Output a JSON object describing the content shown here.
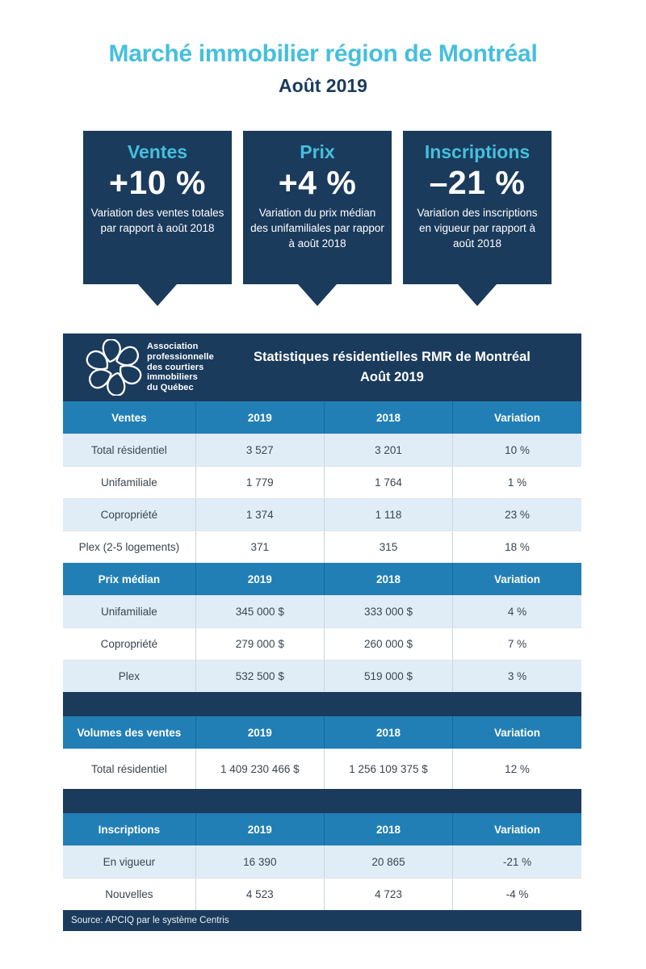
{
  "page": {
    "title": "Marché immobilier région de Montréal",
    "subtitle": "Août 2019"
  },
  "colors": {
    "navy": "#1A3B5C",
    "cyan": "#45BFDD",
    "section_header_blue": "#217FB5",
    "light_row_blue": "#E0EDF7",
    "cell_text": "#3A4550"
  },
  "callouts": [
    {
      "label": "Ventes",
      "value": "+10 %",
      "description": "Variation des ventes totales par rapport à août 2018"
    },
    {
      "label": "Prix",
      "value": "+4 %",
      "description": "Variation du prix médian des unifamiliales par rappor à août 2018"
    },
    {
      "label": "Inscriptions",
      "value": "–21 %",
      "description": "Variation des inscriptions en vigueur par rapport à août 2018"
    }
  ],
  "table": {
    "logo": {
      "icon": "apciq-pinwheel-logo",
      "text_lines": [
        "Association",
        "professionnelle",
        "des courtiers",
        "immobiliers",
        "du Québec"
      ]
    },
    "title_line1": "Statistiques résidentielles RMR de Montréal",
    "title_line2": "Août 2019",
    "sections": [
      {
        "label": "Ventes",
        "header": [
          "Ventes",
          "2019",
          "2018",
          "Variation"
        ],
        "rows": [
          [
            "Total résidentiel",
            "3 527",
            "3 201",
            "10 %"
          ],
          [
            "Unifamiliale",
            "1 779",
            "1 764",
            "1 %"
          ],
          [
            "Copropriété",
            "1 374",
            "1 118",
            "23 %"
          ],
          [
            "Plex (2-5 logements)",
            "371",
            "315",
            "18 %"
          ]
        ],
        "gap_before": false
      },
      {
        "label": "Prix médian",
        "header": [
          "Prix médian",
          "2019",
          "2018",
          "Variation"
        ],
        "rows": [
          [
            "Unifamiliale",
            "345 000 $",
            "333 000 $",
            "4 %"
          ],
          [
            "Copropriété",
            "279 000 $",
            "260 000 $",
            "7 %"
          ],
          [
            "Plex",
            "532 500 $",
            "519 000 $",
            "3 %"
          ]
        ],
        "gap_before": false
      },
      {
        "label": "Volumes des ventes",
        "header": [
          "Volumes des ventes",
          "2019",
          "2018",
          "Variation"
        ],
        "rows": [
          [
            "Total résidentiel",
            "1 409 230 466 $",
            "1 256 109 375 $",
            "12 %"
          ]
        ],
        "gap_before": true,
        "tall_rows": true
      },
      {
        "label": "Inscriptions",
        "header": [
          "Inscriptions",
          "2019",
          "2018",
          "Variation"
        ],
        "rows": [
          [
            "En vigueur",
            "16 390",
            "20 865",
            "-21 %"
          ],
          [
            "Nouvelles",
            "4 523",
            "4 723",
            "-4 %"
          ]
        ],
        "gap_before": true
      }
    ],
    "source": "Source: APCIQ par le système Centris"
  }
}
